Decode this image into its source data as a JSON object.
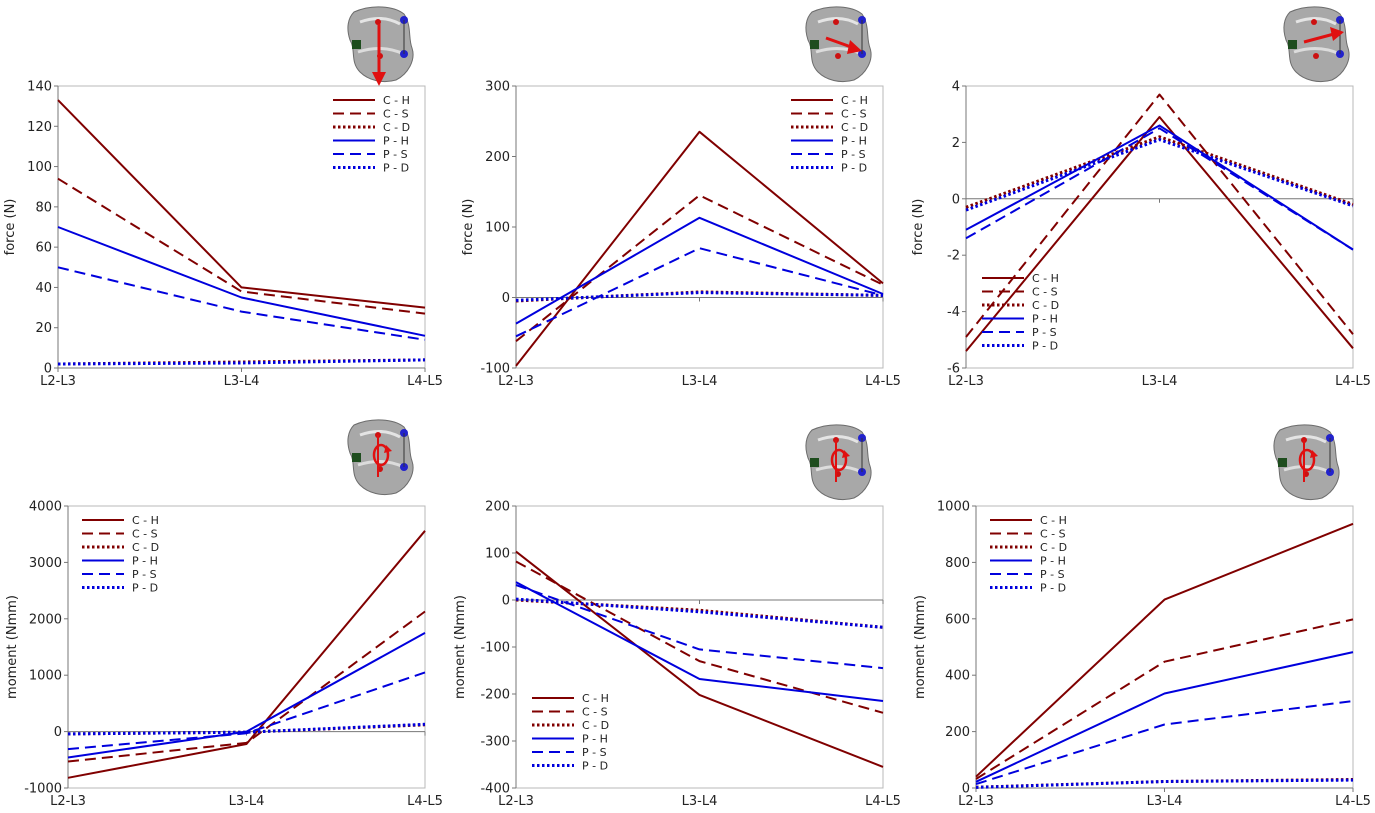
{
  "chart_data": [
    {
      "type": "line",
      "title": "",
      "ylabel": "force (N)",
      "xlabel": "",
      "categories": [
        "L2-L3",
        "L3-L4",
        "L4-L5"
      ],
      "ylim": [
        0,
        140
      ],
      "yticks": [
        0,
        20,
        40,
        60,
        80,
        100,
        120,
        140
      ],
      "legend": "top-right",
      "grid": false,
      "icon": "spine-vertical-force-arrow",
      "series": [
        {
          "name": "C - H",
          "color": "#800000",
          "dash": "solid",
          "values": [
            133,
            40,
            30
          ]
        },
        {
          "name": "C - S",
          "color": "#800000",
          "dash": "dashed",
          "values": [
            94,
            38,
            27
          ]
        },
        {
          "name": "C - D",
          "color": "#800000",
          "dash": "dotted",
          "values": [
            2,
            3,
            4
          ]
        },
        {
          "name": "P - H",
          "color": "#0000dd",
          "dash": "solid",
          "values": [
            70,
            35,
            16
          ]
        },
        {
          "name": "P - S",
          "color": "#0000dd",
          "dash": "dashed",
          "values": [
            50,
            28,
            14
          ]
        },
        {
          "name": "P - D",
          "color": "#0000dd",
          "dash": "dotted",
          "values": [
            2,
            2.5,
            4
          ]
        }
      ]
    },
    {
      "type": "line",
      "title": "",
      "ylabel": "force (N)",
      "xlabel": "",
      "categories": [
        "L2-L3",
        "L3-L4",
        "L4-L5"
      ],
      "ylim": [
        -100,
        300
      ],
      "yticks": [
        -100,
        0,
        100,
        200,
        300
      ],
      "legend": "top-right",
      "grid": false,
      "icon": "spine-anterior-force-arrow",
      "series": [
        {
          "name": "C - H",
          "color": "#800000",
          "dash": "solid",
          "values": [
            -97,
            235,
            20
          ]
        },
        {
          "name": "C - S",
          "color": "#800000",
          "dash": "dashed",
          "values": [
            -62,
            145,
            18
          ]
        },
        {
          "name": "C - D",
          "color": "#800000",
          "dash": "dotted",
          "values": [
            -5,
            8,
            3
          ]
        },
        {
          "name": "P - H",
          "color": "#0000dd",
          "dash": "solid",
          "values": [
            -37,
            113,
            5
          ]
        },
        {
          "name": "P - S",
          "color": "#0000dd",
          "dash": "dashed",
          "values": [
            -55,
            70,
            3
          ]
        },
        {
          "name": "P - D",
          "color": "#0000dd",
          "dash": "dotted",
          "values": [
            -4,
            7,
            3
          ]
        }
      ]
    },
    {
      "type": "line",
      "title": "",
      "ylabel": "force (N)",
      "xlabel": "",
      "categories": [
        "L2-L3",
        "L3-L4",
        "L4-L5"
      ],
      "ylim": [
        -6,
        4
      ],
      "yticks": [
        -6,
        -4,
        -2,
        0,
        2,
        4
      ],
      "legend": "bottom-left",
      "grid": false,
      "icon": "spine-lateral-force-arrow",
      "series": [
        {
          "name": "C - H",
          "color": "#800000",
          "dash": "solid",
          "values": [
            -5.4,
            2.9,
            -5.3
          ]
        },
        {
          "name": "C - S",
          "color": "#800000",
          "dash": "dashed",
          "values": [
            -4.9,
            3.7,
            -4.8
          ]
        },
        {
          "name": "C - D",
          "color": "#800000",
          "dash": "dotted",
          "values": [
            -0.3,
            2.2,
            -0.2
          ]
        },
        {
          "name": "P - H",
          "color": "#0000dd",
          "dash": "solid",
          "values": [
            -1.1,
            2.6,
            -1.8
          ]
        },
        {
          "name": "P - S",
          "color": "#0000dd",
          "dash": "dashed",
          "values": [
            -1.4,
            2.5,
            -1.8
          ]
        },
        {
          "name": "P - D",
          "color": "#0000dd",
          "dash": "dotted",
          "values": [
            -0.4,
            2.1,
            -0.25
          ]
        }
      ]
    },
    {
      "type": "line",
      "title": "",
      "ylabel": "moment (Nmm)",
      "xlabel": "",
      "categories": [
        "L2-L3",
        "L3-L4",
        "L4-L5"
      ],
      "ylim": [
        -1000,
        4000
      ],
      "yticks": [
        -1000,
        0,
        1000,
        2000,
        3000,
        4000
      ],
      "legend": "top-left",
      "grid": false,
      "icon": "spine-flexion-moment-arrow",
      "series": [
        {
          "name": "C - H",
          "color": "#800000",
          "dash": "solid",
          "values": [
            -820,
            -220,
            3560
          ]
        },
        {
          "name": "C - S",
          "color": "#800000",
          "dash": "dashed",
          "values": [
            -530,
            -200,
            2130
          ]
        },
        {
          "name": "C - D",
          "color": "#800000",
          "dash": "dotted",
          "values": [
            -40,
            -10,
            120
          ]
        },
        {
          "name": "P - H",
          "color": "#0000dd",
          "dash": "solid",
          "values": [
            -460,
            0,
            1750
          ]
        },
        {
          "name": "P - S",
          "color": "#0000dd",
          "dash": "dashed",
          "values": [
            -310,
            -30,
            1050
          ]
        },
        {
          "name": "P - D",
          "color": "#0000dd",
          "dash": "dotted",
          "values": [
            -40,
            -10,
            130
          ]
        }
      ]
    },
    {
      "type": "line",
      "title": "",
      "ylabel": "moment (Nmm)",
      "xlabel": "",
      "categories": [
        "L2-L3",
        "L3-L4",
        "L4-L5"
      ],
      "ylim": [
        -400,
        200
      ],
      "yticks": [
        -400,
        -300,
        -200,
        -100,
        0,
        100,
        200
      ],
      "legend": "bottom-left",
      "grid": false,
      "icon": "spine-lateral-bending-moment-arrow",
      "series": [
        {
          "name": "C - H",
          "color": "#800000",
          "dash": "solid",
          "values": [
            103,
            -202,
            -355
          ]
        },
        {
          "name": "C - S",
          "color": "#800000",
          "dash": "dashed",
          "values": [
            82,
            -130,
            -240
          ]
        },
        {
          "name": "C - D",
          "color": "#800000",
          "dash": "dotted",
          "values": [
            0,
            -22,
            -58
          ]
        },
        {
          "name": "P - H",
          "color": "#0000dd",
          "dash": "solid",
          "values": [
            38,
            -168,
            -215
          ]
        },
        {
          "name": "P - S",
          "color": "#0000dd",
          "dash": "dashed",
          "values": [
            32,
            -105,
            -145
          ]
        },
        {
          "name": "P - D",
          "color": "#0000dd",
          "dash": "dotted",
          "values": [
            2,
            -25,
            -58
          ]
        }
      ]
    },
    {
      "type": "line",
      "title": "",
      "ylabel": "moment (Nmm)",
      "xlabel": "",
      "categories": [
        "L2-L3",
        "L3-L4",
        "L4-L5"
      ],
      "ylim": [
        0,
        1000
      ],
      "yticks": [
        0,
        200,
        400,
        600,
        800,
        1000
      ],
      "legend": "top-left",
      "grid": false,
      "icon": "spine-axial-rotation-moment-arrow",
      "series": [
        {
          "name": "C - H",
          "color": "#800000",
          "dash": "solid",
          "values": [
            40,
            668,
            937
          ]
        },
        {
          "name": "C - S",
          "color": "#800000",
          "dash": "dashed",
          "values": [
            32,
            448,
            598
          ]
        },
        {
          "name": "C - D",
          "color": "#800000",
          "dash": "dotted",
          "values": [
            3,
            23,
            30
          ]
        },
        {
          "name": "P - H",
          "color": "#0000dd",
          "dash": "solid",
          "values": [
            22,
            335,
            482
          ]
        },
        {
          "name": "P - S",
          "color": "#0000dd",
          "dash": "dashed",
          "values": [
            14,
            225,
            308
          ]
        },
        {
          "name": "P - D",
          "color": "#0000dd",
          "dash": "dotted",
          "values": [
            2,
            23,
            28
          ]
        }
      ]
    }
  ]
}
